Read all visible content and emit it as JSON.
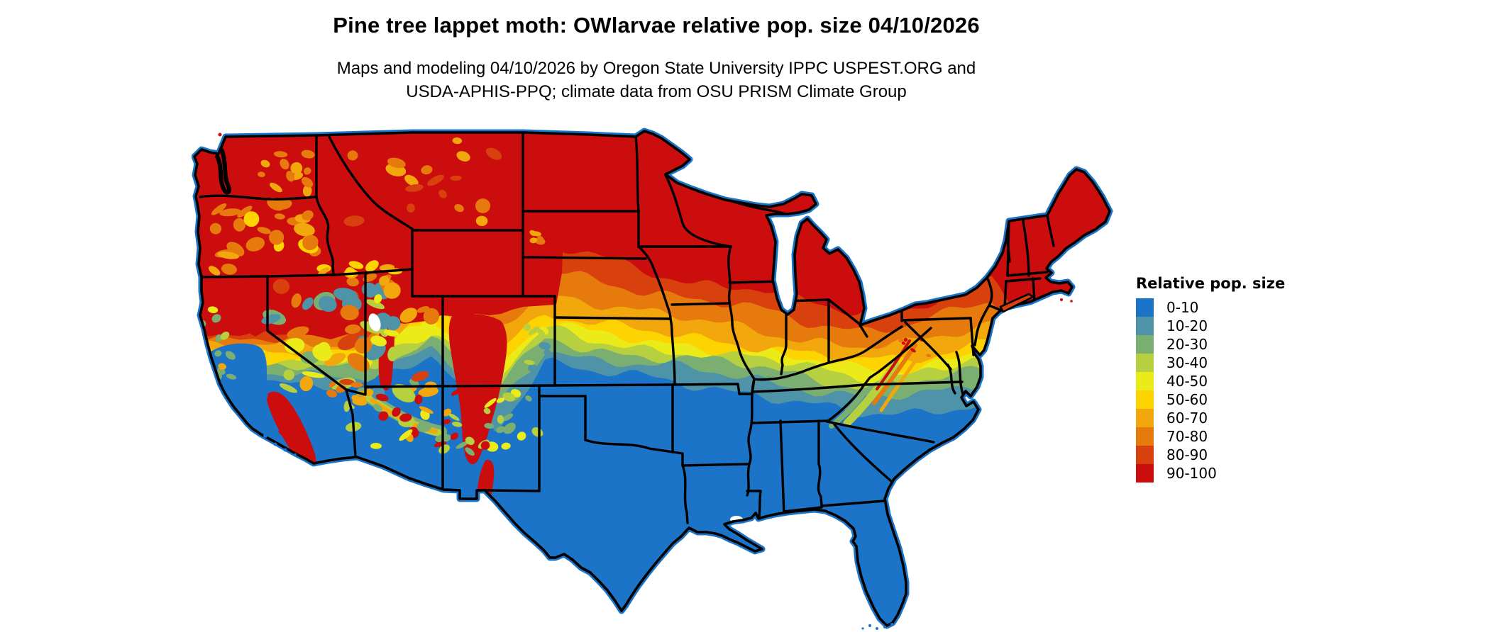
{
  "header": {
    "title": "Pine tree lappet moth: OWlarvae relative pop. size 04/10/2026",
    "subtitle_line1": "Maps and modeling 04/10/2026 by Oregon State University IPPC USPEST.ORG and",
    "subtitle_line2": "USDA-APHIS-PPQ; climate data from OSU PRISM Climate Group"
  },
  "legend": {
    "title": "Relative pop. size",
    "items": [
      {
        "label": "0-10",
        "color": "#1B74C8"
      },
      {
        "label": "10-20",
        "color": "#4E93A8"
      },
      {
        "label": "20-30",
        "color": "#7BAF71"
      },
      {
        "label": "30-40",
        "color": "#B6D03F"
      },
      {
        "label": "40-50",
        "color": "#EBEB19"
      },
      {
        "label": "50-60",
        "color": "#FDD400"
      },
      {
        "label": "60-70",
        "color": "#F2A70C"
      },
      {
        "label": "70-80",
        "color": "#E67A0C"
      },
      {
        "label": "80-90",
        "color": "#D8400D"
      },
      {
        "label": "90-100",
        "color": "#CB0D0D"
      }
    ]
  },
  "map": {
    "region": "Contiguous United States",
    "outline_color": "#000000",
    "water_color": "#ffffff"
  }
}
